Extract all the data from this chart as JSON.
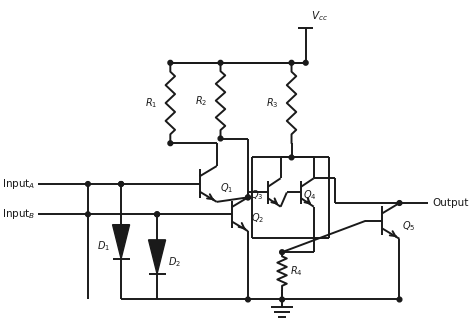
{
  "bg_color": "#ffffff",
  "line_color": "#1a1a1a",
  "lw": 1.4,
  "figsize": [
    4.74,
    3.31
  ],
  "dpi": 100
}
